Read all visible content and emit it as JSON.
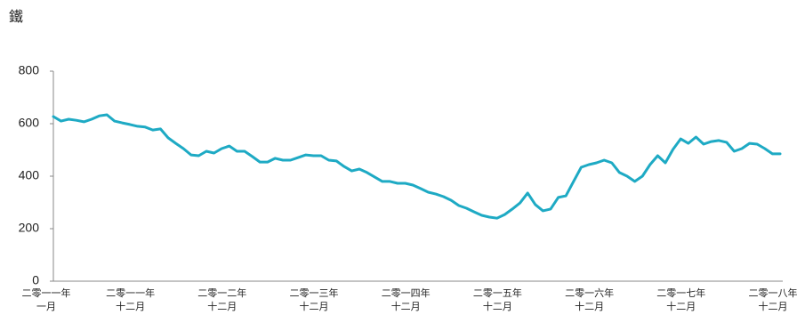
{
  "chart_data": {
    "type": "line",
    "title": "鐵",
    "categories": [
      "二零一一年\n一月",
      null,
      null,
      null,
      null,
      null,
      null,
      null,
      null,
      null,
      null,
      "二零一一年\n十二月",
      null,
      null,
      null,
      null,
      null,
      null,
      null,
      null,
      null,
      null,
      null,
      "二零一二年\n十二月",
      null,
      null,
      null,
      null,
      null,
      null,
      null,
      null,
      null,
      null,
      null,
      "二零一三年\n十二月",
      null,
      null,
      null,
      null,
      null,
      null,
      null,
      null,
      null,
      null,
      null,
      "二零一四年\n十二月",
      null,
      null,
      null,
      null,
      null,
      null,
      null,
      null,
      null,
      null,
      null,
      "二零一五年\n十二月",
      null,
      null,
      null,
      null,
      null,
      null,
      null,
      null,
      null,
      null,
      null,
      "二零一六年\n十二月",
      null,
      null,
      null,
      null,
      null,
      null,
      null,
      null,
      null,
      null,
      null,
      "二零一七年\n十二月",
      null,
      null,
      null,
      null,
      null,
      null,
      null,
      null,
      null,
      null,
      null,
      "二零一八年\n十二月"
    ],
    "values": [
      627,
      610,
      617,
      613,
      607,
      617,
      630,
      634,
      610,
      603,
      597,
      590,
      587,
      576,
      580,
      546,
      525,
      505,
      481,
      478,
      495,
      488,
      505,
      515,
      495,
      495,
      475,
      454,
      454,
      468,
      461,
      461,
      471,
      481,
      478,
      478,
      461,
      458,
      437,
      420,
      427,
      414,
      397,
      380,
      380,
      373,
      373,
      366,
      353,
      339,
      332,
      322,
      308,
      288,
      278,
      264,
      251,
      244,
      240,
      254,
      275,
      298,
      336,
      292,
      268,
      275,
      319,
      325,
      380,
      434,
      444,
      451,
      461,
      451,
      414,
      400,
      380,
      400,
      444,
      478,
      451,
      502,
      542,
      525,
      549,
      522,
      532,
      536,
      529,
      495,
      505,
      525,
      522,
      505,
      485,
      485
    ],
    "color": "#1eaac4",
    "ylim": [
      0,
      800
    ],
    "yticks": [
      0,
      200,
      400,
      600,
      800
    ],
    "grid": false
  }
}
